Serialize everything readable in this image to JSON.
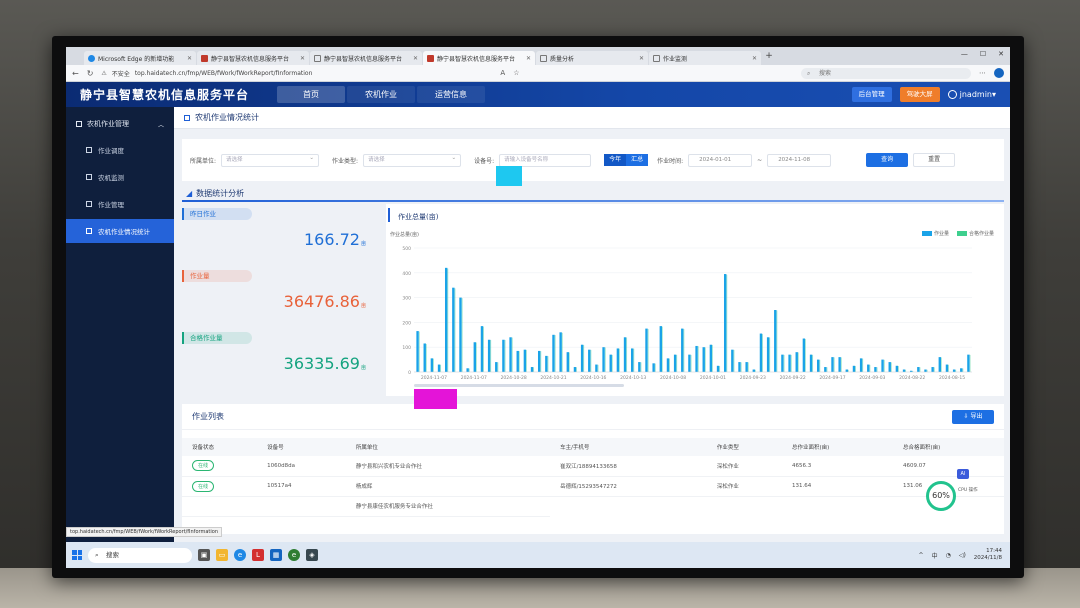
{
  "browser": {
    "tabs": [
      {
        "label": "Microsoft Edge 的新增功能",
        "fav": "edge",
        "active": false
      },
      {
        "label": "静宁县智慧农机信息服务平台",
        "fav": "app",
        "active": false
      },
      {
        "label": "静宁县智慧农机信息服务平台",
        "fav": "doc",
        "active": false
      },
      {
        "label": "静宁县智慧农机信息服务平台",
        "fav": "app",
        "active": true
      },
      {
        "label": "质量分析",
        "fav": "doc",
        "active": false
      },
      {
        "label": "作业监测",
        "fav": "doc",
        "active": false
      }
    ],
    "insecure_label": "不安全",
    "url": "top.haidatech.cn/fmp/WEB/fWork/fWorkReport/fInformation",
    "search_placeholder": "搜索"
  },
  "app": {
    "title": "静宁县智慧农机信息服务平台",
    "nav": [
      {
        "label": "首页",
        "active": true
      },
      {
        "label": "农机作业",
        "active": false
      },
      {
        "label": "运营信息",
        "active": false
      }
    ],
    "admin_button": "后台管理",
    "screen_button": "驾驶大屏",
    "user": "jnadmin▾"
  },
  "sidebar": {
    "group": "农机作业管理",
    "items": [
      {
        "label": "作业调度",
        "active": false
      },
      {
        "label": "农机监测",
        "active": false
      },
      {
        "label": "作业管理",
        "active": false
      },
      {
        "label": "农机作业情况统计",
        "active": true
      }
    ]
  },
  "page": {
    "breadcrumb": "农机作业情况统计",
    "filters": {
      "unit_label": "所属单位:",
      "unit_placeholder": "请选择",
      "type_label": "作业类型:",
      "type_placeholder": "请选择",
      "device_label": "设备号:",
      "device_placeholder": "请输入设备号名称",
      "seg_year": "今年",
      "seg_custom": "汇总",
      "time_label": "作业时间:",
      "start_date": "2024-01-01",
      "end_date": "2024-11-08",
      "query_button": "查询",
      "reset_button": "重置"
    },
    "section_title": "数据统计分析",
    "kpis": [
      {
        "label": "昨日作业",
        "value": "166.72",
        "unit": "亩",
        "color": "#1f6fd6"
      },
      {
        "label": "作业量",
        "value": "36476.86",
        "unit": "亩",
        "color": "#e8623a"
      },
      {
        "label": "合格作业量",
        "value": "36335.69",
        "unit": "亩",
        "color": "#14a37f"
      }
    ],
    "chart_title": "作业总量(亩)",
    "list_title": "作业列表",
    "export_button": "导出",
    "table": {
      "headers": [
        "设备状态",
        "设备号",
        "所属单位",
        "车主/手机号",
        "作业类型",
        "总作业面积(亩)",
        "总合格面积(亩)"
      ],
      "rows": [
        [
          "在线",
          "1060d8da",
          "静宁县和兴农机专业合作社",
          "崔双江/18894133658",
          "深松作业",
          "4656.3",
          "4609.07"
        ],
        [
          "在线",
          "10517a4",
          "杨成辉",
          "岳德辉/15293547272",
          "深松作业",
          "131.64",
          "131.06"
        ]
      ],
      "partial_row_unit": "静宁县康佳农机服务专业合作社"
    },
    "status_url": "top.haidatech.cn/fmp/WEB/fWork/fWorkReport/fInformation"
  },
  "widget": {
    "percent": "60%",
    "cpu": "CPU 操作",
    "ai": "AI"
  },
  "taskbar": {
    "search": "搜索",
    "time": "17:44",
    "date": "2024/11/8",
    "lang": "中"
  },
  "chart_data": {
    "type": "bar",
    "title": "作业总量(亩)",
    "ylabel": "作业总量(亩)",
    "ylim": [
      0,
      500
    ],
    "yticks": [
      0,
      100,
      200,
      300,
      400,
      500
    ],
    "series": [
      {
        "name": "作业量",
        "color": "#1aa3e8",
        "values": [
          165,
          115,
          55,
          30,
          420,
          340,
          300,
          15,
          120,
          185,
          130,
          40,
          130,
          140,
          85,
          90,
          20,
          85,
          65,
          150,
          160,
          80,
          20,
          110,
          90,
          30,
          100,
          70,
          95,
          140,
          95,
          40,
          175,
          35,
          185,
          55,
          70,
          175,
          70,
          105,
          100,
          110,
          25,
          395,
          90,
          40,
          40,
          10,
          155,
          140,
          250,
          70,
          70,
          80,
          135,
          70,
          50,
          20,
          60,
          60,
          10,
          25,
          55,
          30,
          20,
          50,
          40,
          25,
          10,
          5,
          20,
          10,
          20,
          60,
          30,
          10,
          15,
          70
        ]
      },
      {
        "name": "合格作业量",
        "color": "#3ecf8e",
        "values": [
          163,
          113,
          54,
          29,
          417,
          337,
          298,
          14,
          119,
          183,
          129,
          39,
          129,
          139,
          84,
          89,
          19,
          84,
          64,
          149,
          158,
          79,
          19,
          109,
          89,
          29,
          99,
          69,
          94,
          139,
          94,
          39,
          173,
          34,
          183,
          54,
          69,
          173,
          69,
          104,
          99,
          109,
          24,
          392,
          89,
          39,
          39,
          9,
          153,
          139,
          248,
          69,
          69,
          79,
          133,
          69,
          49,
          19,
          59,
          59,
          9,
          24,
          54,
          29,
          19,
          49,
          39,
          24,
          9,
          4,
          19,
          9,
          19,
          59,
          29,
          9,
          14,
          69
        ]
      }
    ],
    "x_labels": [
      "2024-11-07",
      "2024-11-07",
      "2024-10-28",
      "2024-10-21",
      "2024-10-16",
      "2024-10-13",
      "2024-10-08",
      "2024-10-01",
      "2024-09-23",
      "2024-09-22",
      "2024-09-17",
      "2024-09-03",
      "2024-08-22",
      "2024-08-15"
    ],
    "legend": "top-right"
  }
}
